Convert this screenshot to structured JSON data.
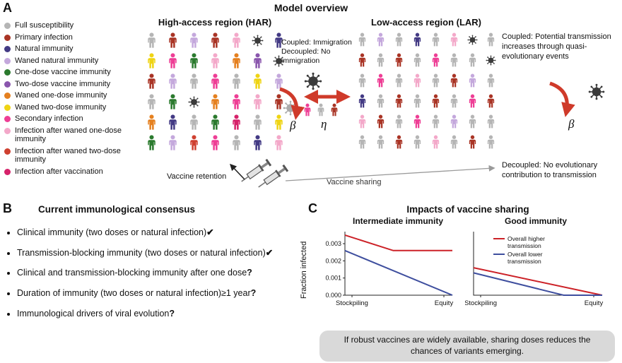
{
  "colors": {
    "gy": "#b5b5b5",
    "pi": "#a93425",
    "ni": "#433a84",
    "wn": "#c4a8dc",
    "od": "#2b7a2e",
    "td": "#8a56ad",
    "wo": "#e5801f",
    "wt": "#efd414",
    "si": "#ee3e95",
    "io": "#f3a8c9",
    "it": "#cf4030",
    "iv": "#d6226a",
    "vx": "#3b3b3b",
    "vg": "#aaaaaa",
    "arrow_red": "#cf3a2a"
  },
  "panelA": {
    "label": "A",
    "title": "Model overview",
    "legend": {
      "items": [
        {
          "label": "Full susceptibility",
          "color": "#b5b5b5"
        },
        {
          "label": "Primary infection",
          "color": "#a93425"
        },
        {
          "label": "Natural immunity",
          "color": "#433a84"
        },
        {
          "label": "Waned natural immunity",
          "color": "#c4a8dc"
        },
        {
          "label": "One-dose vaccine immunity",
          "color": "#2b7a2e"
        },
        {
          "label": "Two-dose vaccine immunity",
          "color": "#8a56ad"
        },
        {
          "label": "Waned one-dose immunity",
          "color": "#e5801f"
        },
        {
          "label": "Waned two-dose immunity",
          "color": "#efd414"
        },
        {
          "label": "Secondary infection",
          "color": "#ee3e95"
        },
        {
          "label": "Infection after waned one-dose immunity",
          "color": "#f3a8c9"
        },
        {
          "label": "Infection after waned two-dose immunity",
          "color": "#cf4030"
        },
        {
          "label": "Infection after vaccination",
          "color": "#d6226a"
        }
      ]
    },
    "har": {
      "title": "High-access region (HAR)",
      "grid": [
        [
          "gy",
          "pi",
          "wn",
          "pi",
          "io",
          "vx",
          "ni"
        ],
        [
          "wt",
          "si",
          "od",
          "io",
          "wo",
          "td",
          "vx"
        ],
        [
          "pi",
          "wn",
          "gy",
          "si",
          "gy",
          "wt",
          "wn"
        ],
        [
          "gy",
          "od",
          "vx",
          "wo",
          "si",
          "io",
          "pi"
        ],
        [
          "wo",
          "ni",
          "gy",
          "od",
          "iv",
          "gy",
          "wt"
        ],
        [
          "od",
          "wn",
          "it",
          "si",
          "gy",
          "ni",
          "io"
        ]
      ]
    },
    "lar": {
      "title": "Low-access region (LAR)",
      "grid": [
        [
          "gy",
          "wn",
          "gy",
          "ni",
          "gy",
          "io",
          "vx",
          "gy"
        ],
        [
          "pi",
          "gy",
          "pi",
          "gy",
          "si",
          "gy",
          "gy",
          "vx"
        ],
        [
          "gy",
          "si",
          "gy",
          "io",
          "gy",
          "pi",
          "wn",
          "gy"
        ],
        [
          "ni",
          "gy",
          "pi",
          "gy",
          "pi",
          "gy",
          "si",
          "pi"
        ],
        [
          "io",
          "pi",
          "gy",
          "si",
          "gy",
          "wn",
          "gy",
          "gy"
        ],
        [
          "gy",
          "gy",
          "pi",
          "gy",
          "io",
          "gy",
          "pi",
          "gy"
        ]
      ]
    },
    "middle": {
      "line1": "Coupled: Immigration",
      "line2": "Decoupled: No immigration",
      "beta": "β",
      "eta": "η",
      "people": [
        [
          "si",
          "gy",
          "pi"
        ]
      ]
    },
    "right": {
      "coupled": "Coupled: Potential transmission increases through quasi-evolutionary events",
      "beta": "β",
      "decoupled": "Decoupled: No evolutionary contribution to transmission"
    },
    "bottom": {
      "retention": "Vaccine retention",
      "sharing": "Vaccine sharing"
    }
  },
  "panelB": {
    "label": "B",
    "title": "Current immunological consensus",
    "items": [
      {
        "text": "Clinical immunity (two doses or natural infection)",
        "mark": "✔"
      },
      {
        "text": "Transmission-blocking immunity (two doses or natural infection)",
        "mark": "✔"
      },
      {
        "text": "Clinical and transmission-blocking immunity after one dose",
        "mark": "?"
      },
      {
        "text": "Duration of immunity (two doses or natural infection)≥1 year",
        "mark": "?"
      },
      {
        "text": "Immunological drivers of viral evolution",
        "mark": "?"
      }
    ]
  },
  "panelC": {
    "label": "C",
    "title": "Impacts of vaccine sharing",
    "note": "If robust vaccines are widely available, sharing doses reduces the chances of variants emerging."
  },
  "chart_data": [
    {
      "type": "line",
      "title": "Intermediate immunity",
      "ylabel": "Fraction infected",
      "x_labels": [
        "Stockpiling",
        "Equity"
      ],
      "ylim": [
        0,
        0.0037
      ],
      "yticks": [
        0,
        0.001,
        0.002,
        0.003
      ],
      "series": [
        {
          "name": "Overall higher transmission",
          "color": "#cc2127",
          "points": [
            [
              0,
              0.0035
            ],
            [
              0.45,
              0.0026
            ],
            [
              1,
              0.0026
            ]
          ]
        },
        {
          "name": "Overall lower transmission",
          "color": "#3e4e9e",
          "points": [
            [
              0,
              0.0026
            ],
            [
              1,
              0
            ]
          ]
        }
      ]
    },
    {
      "type": "line",
      "title": "Good immunity",
      "x_labels": [
        "Stockpiling",
        "Equity"
      ],
      "ylim": [
        0,
        0.0037
      ],
      "show_legend": true,
      "series": [
        {
          "name": "Overall higher transmission",
          "color": "#cc2127",
          "points": [
            [
              0,
              0.0016
            ],
            [
              1,
              0
            ]
          ]
        },
        {
          "name": "Overall lower transmission",
          "color": "#3e4e9e",
          "points": [
            [
              0,
              0.0013
            ],
            [
              0.7,
              0
            ],
            [
              1,
              0
            ]
          ]
        }
      ]
    }
  ]
}
